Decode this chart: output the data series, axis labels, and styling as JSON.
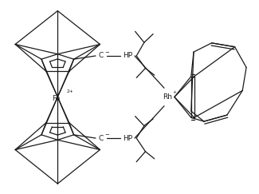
{
  "figsize": [
    3.25,
    2.43
  ],
  "dpi": 100,
  "bg_color": "#ffffff",
  "line_color": "#1a1a1a",
  "lw": 0.9,
  "font_size": 6.5,
  "xlim": [
    0,
    10
  ],
  "ylim": [
    0,
    7.5
  ]
}
